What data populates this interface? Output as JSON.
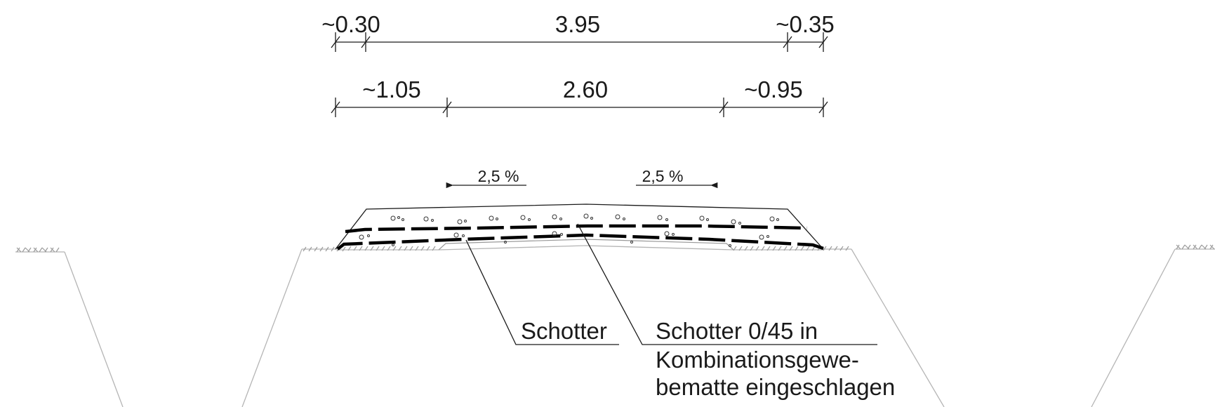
{
  "dimensions": {
    "row1": [
      "~0.30",
      "3.95",
      "~0.35"
    ],
    "row2": [
      "~1.05",
      "2.60",
      "~0.95"
    ]
  },
  "slopes": {
    "left": "2,5 %",
    "right": "2,5 %"
  },
  "labels": {
    "schotter": "Schotter",
    "schotter_045_line1": "Schotter 0/45 in",
    "schotter_045_line2": "Kombinationsgewe-",
    "schotter_045_line3": "bematte eingeschlagen"
  }
}
